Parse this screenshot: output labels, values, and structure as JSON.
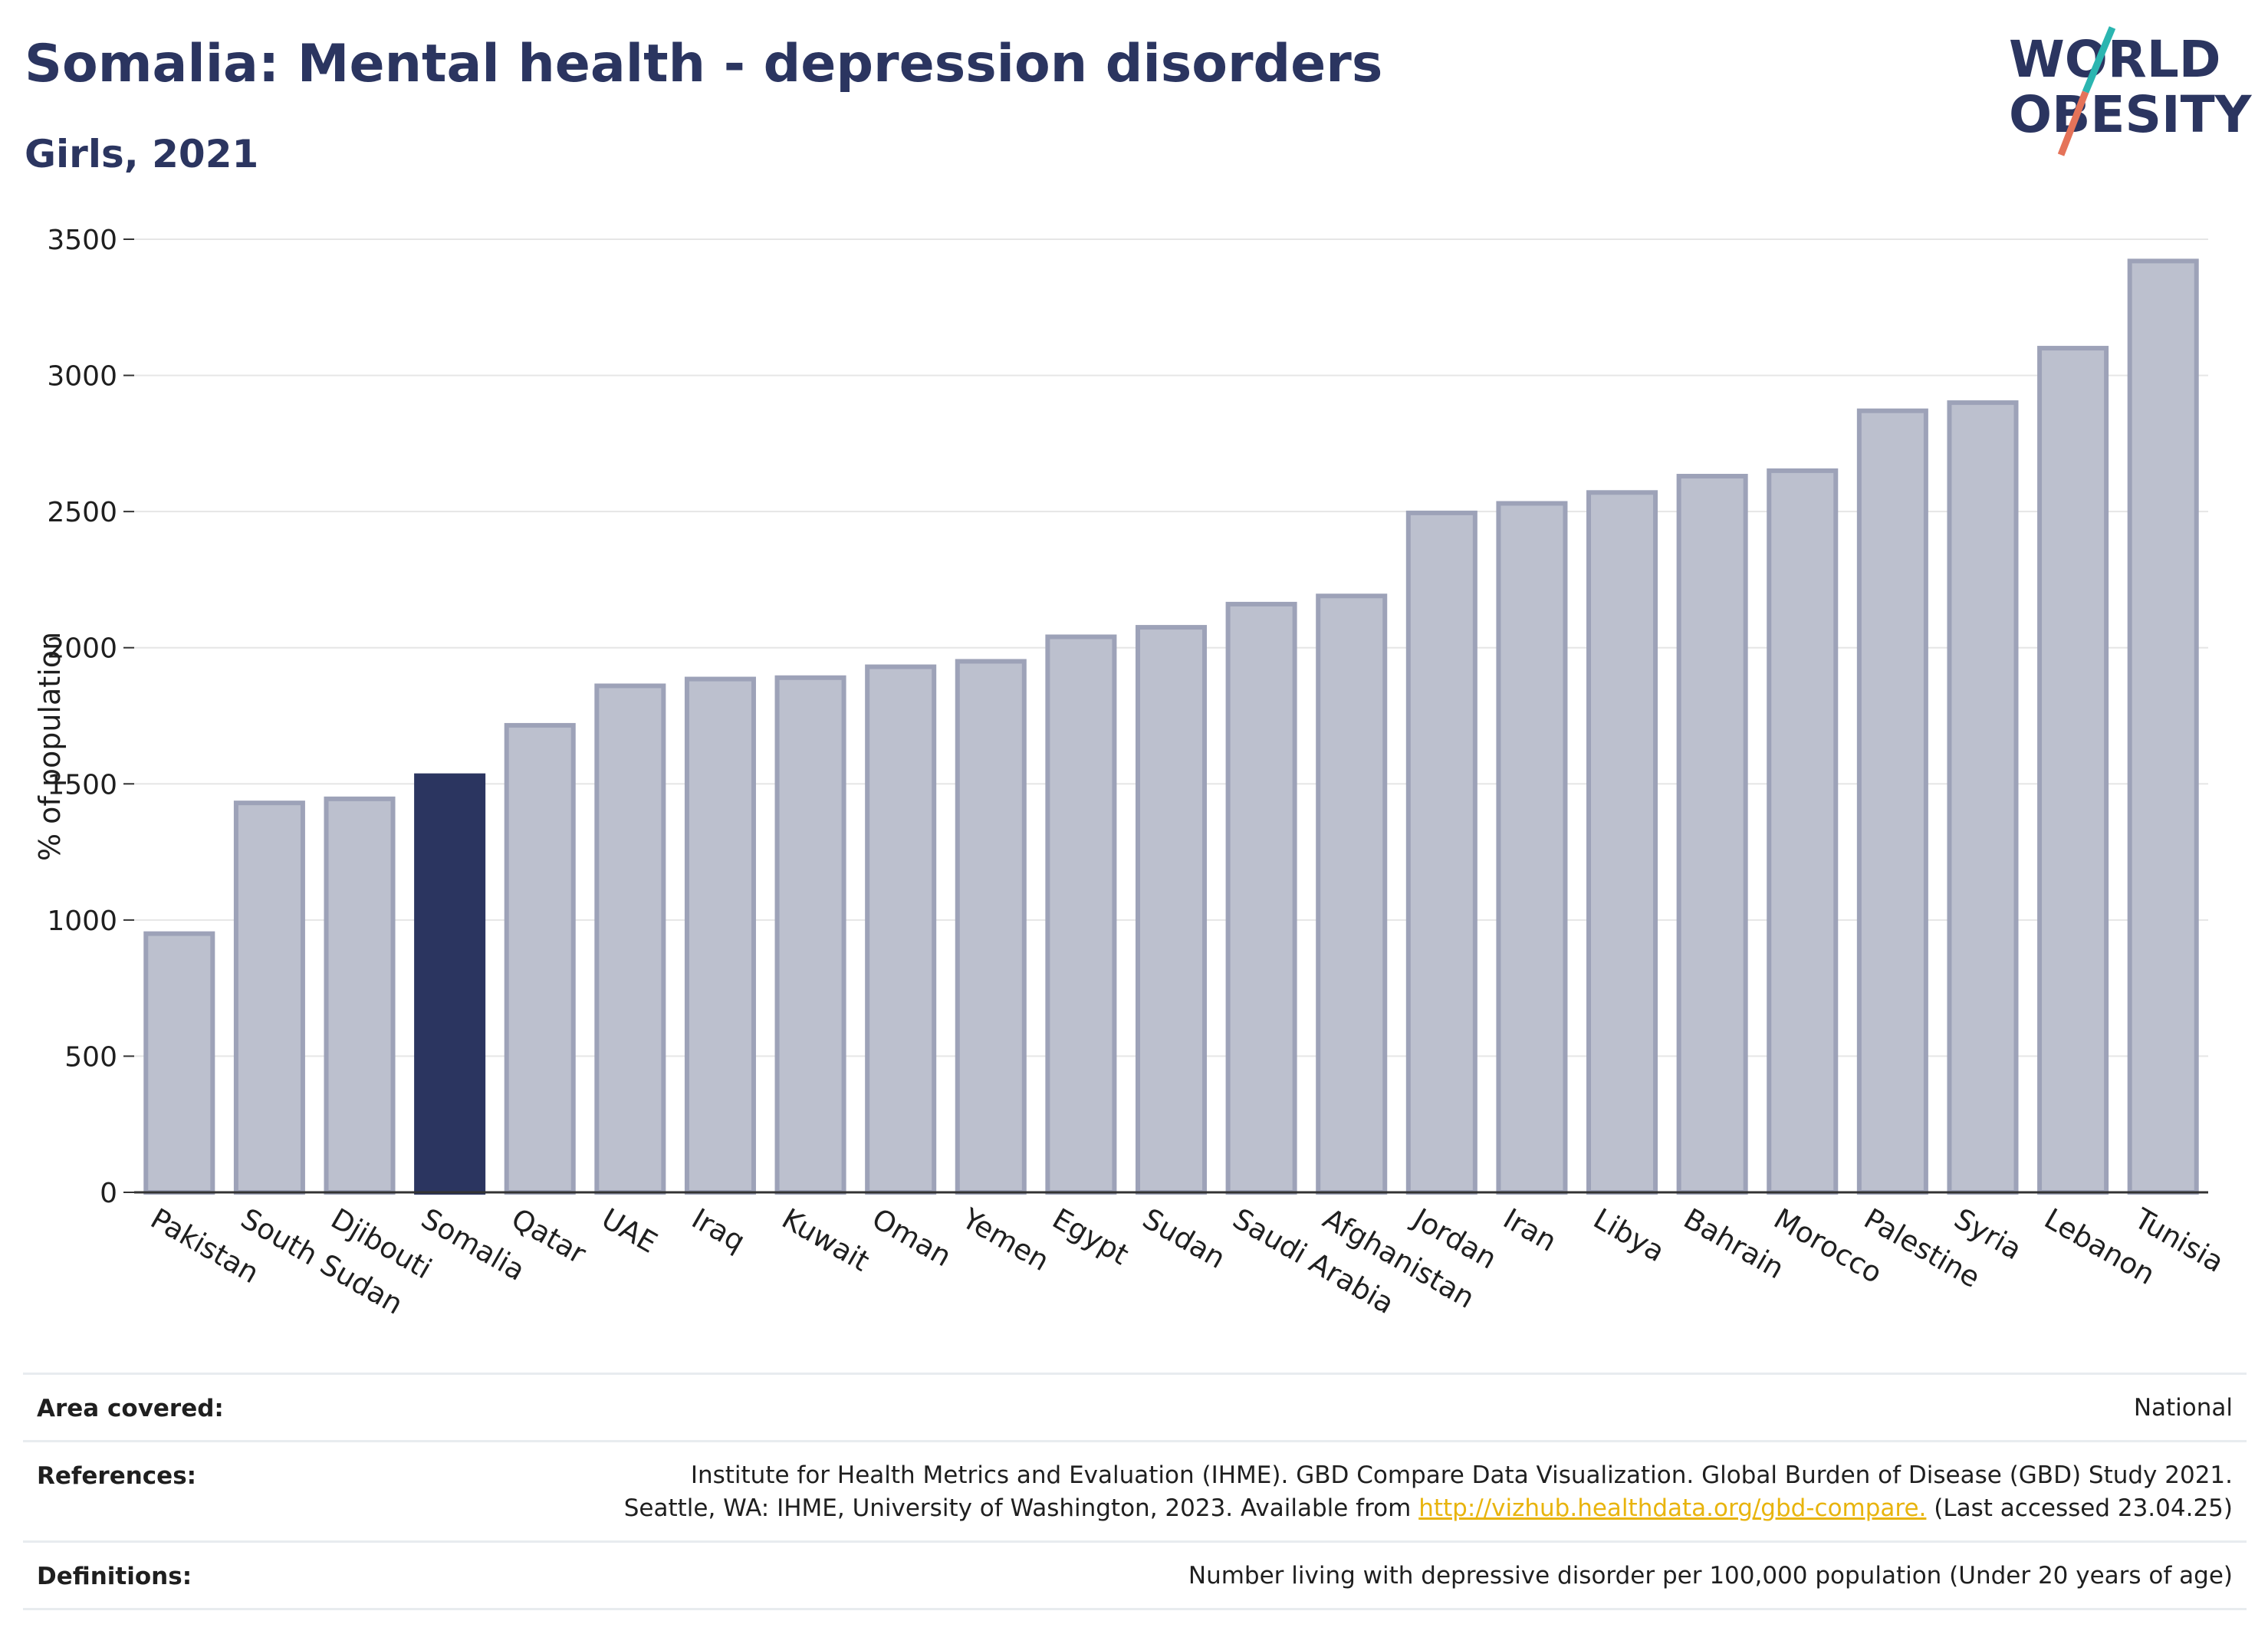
{
  "header": {
    "title": "Somalia: Mental health - depression disorders",
    "subtitle": "Girls, 2021"
  },
  "logo": {
    "line1": "WORLD",
    "line2": "OBESITY"
  },
  "colors": {
    "highlight": "#2b3560",
    "bar_fill": "#bcc0ce",
    "bar_stroke": "#9da2b8",
    "grid": "#e6e6e6",
    "axis": "#333333",
    "link": "#e8b40d",
    "logo_teal": "#2bb5b0",
    "logo_coral": "#e57359"
  },
  "chart_data": {
    "type": "bar",
    "title": "Somalia: Mental health - depression disorders",
    "subtitle": "Girls, 2021",
    "xlabel": "",
    "ylabel": "% of population",
    "ylim": [
      0,
      3500
    ],
    "yticks": [
      0,
      500,
      1000,
      1500,
      2000,
      2500,
      3000,
      3500
    ],
    "grid": true,
    "highlight": "Somalia",
    "categories": [
      "Pakistan",
      "South Sudan",
      "Djibouti",
      "Somalia",
      "Qatar",
      "UAE",
      "Iraq",
      "Kuwait",
      "Oman",
      "Yemen",
      "Egypt",
      "Sudan",
      "Saudi Arabia",
      "Afghanistan",
      "Jordan",
      "Iran",
      "Libya",
      "Bahrain",
      "Morocco",
      "Palestine",
      "Syria",
      "Lebanon",
      "Tunisia"
    ],
    "values": [
      950,
      1430,
      1445,
      1530,
      1715,
      1860,
      1885,
      1890,
      1930,
      1950,
      2040,
      2075,
      2160,
      2190,
      2495,
      2530,
      2570,
      2630,
      2650,
      2870,
      2900,
      3100,
      3420
    ]
  },
  "footer": {
    "rows": [
      {
        "label": "Area covered:",
        "lines": [
          "National"
        ]
      },
      {
        "label": "References:",
        "lines": [
          "Institute for Health Metrics and Evaluation (IHME). GBD Compare Data Visualization. Global Burden of Disease (GBD) Study 2021."
        ],
        "line2_prefix": "Seattle, WA: IHME, University of Washington, 2023. Available from ",
        "line2_link": "http://vizhub.healthdata.org/gbd-compare.",
        "line2_suffix": " (Last accessed 23.04.25)"
      },
      {
        "label": "Definitions:",
        "lines": [
          "Number living with depressive disorder per 100,000 population (Under 20 years of age)"
        ]
      }
    ]
  }
}
